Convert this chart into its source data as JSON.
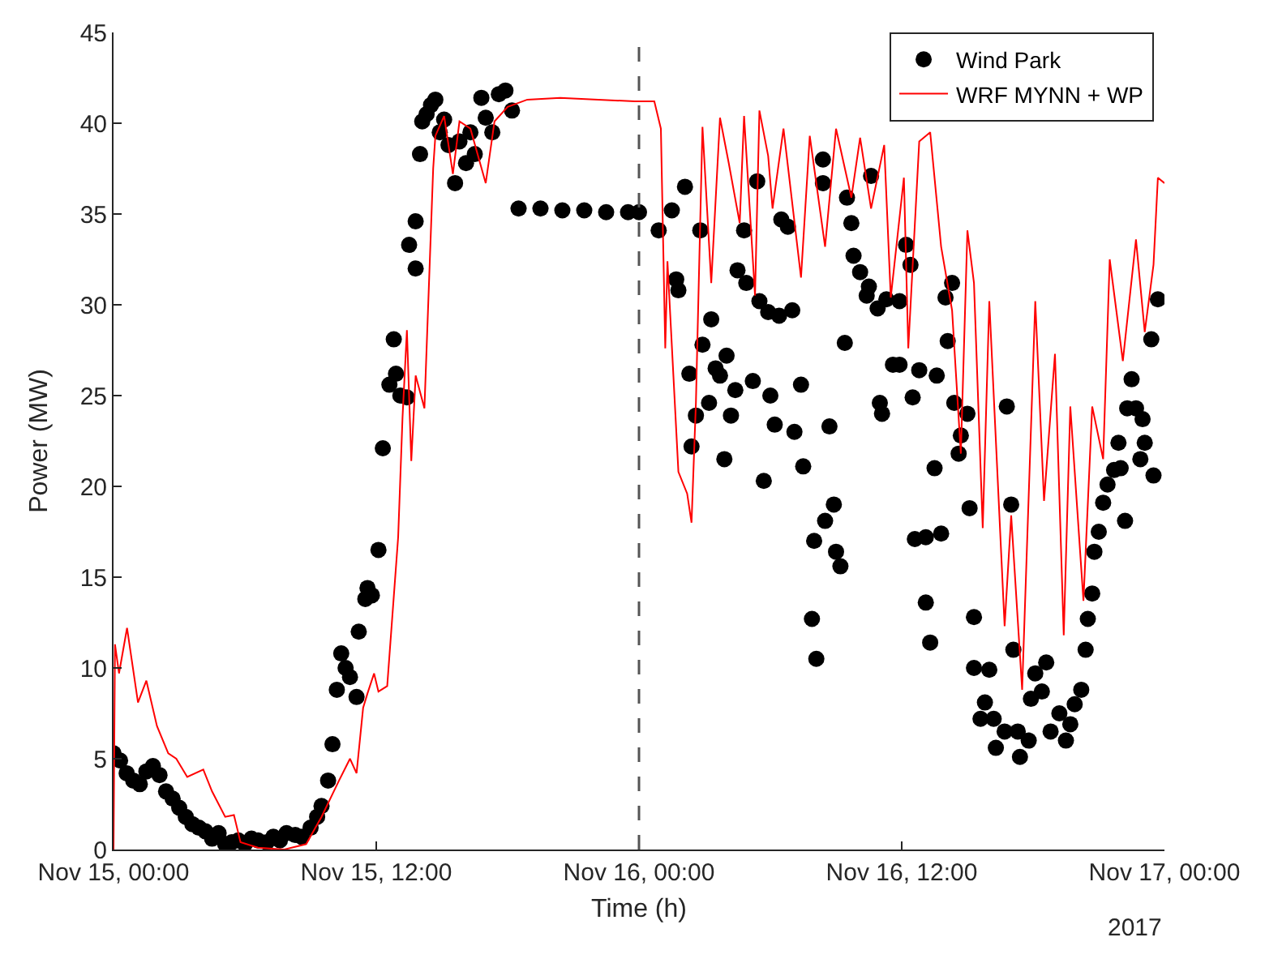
{
  "chart_data": {
    "type": "scatter",
    "xlabel": "Time (h)",
    "ylabel": "Power (MW)",
    "xlim": [
      "2017-11-15T00:00",
      "2017-11-17T00:00"
    ],
    "xticks": [
      {
        "value": "2017-11-15T00:00",
        "label": "Nov 15, 00:00"
      },
      {
        "value": "2017-11-15T12:00",
        "label": "Nov 15, 12:00"
      },
      {
        "value": "2017-11-16T00:00",
        "label": "Nov 16, 00:00"
      },
      {
        "value": "2017-11-16T12:00",
        "label": "Nov 16, 12:00"
      },
      {
        "value": "2017-11-17T00:00",
        "label": "Nov 17, 00:00"
      }
    ],
    "ylim": [
      0,
      45
    ],
    "yticks": [
      0,
      5,
      10,
      15,
      20,
      25,
      30,
      35,
      40,
      45
    ],
    "legend": "top right",
    "annotations": [
      "2017"
    ],
    "ref_lines": [
      {
        "axis": "x",
        "value": "2017-11-16T00:00",
        "color": "#555555",
        "line_style": "dashed"
      }
    ],
    "series": [
      {
        "name": "Wind Park",
        "marker": "circle",
        "color": "#000000",
        "x": [
          "2017-11-15T00:00",
          "2017-11-15T00:18",
          "2017-11-15T00:36",
          "2017-11-15T00:54",
          "2017-11-15T01:12",
          "2017-11-15T01:30",
          "2017-11-15T01:48",
          "2017-11-15T02:06",
          "2017-11-15T02:24",
          "2017-11-15T02:42",
          "2017-11-15T03:00",
          "2017-11-15T03:18",
          "2017-11-15T03:36",
          "2017-11-15T03:54",
          "2017-11-15T04:12",
          "2017-11-15T04:30",
          "2017-11-15T04:48",
          "2017-11-15T05:06",
          "2017-11-15T05:24",
          "2017-11-15T05:42",
          "2017-11-15T06:00",
          "2017-11-15T06:18",
          "2017-11-15T06:36",
          "2017-11-15T07:00",
          "2017-11-15T07:18",
          "2017-11-15T07:36",
          "2017-11-15T07:54",
          "2017-11-15T08:18",
          "2017-11-15T08:36",
          "2017-11-15T09:00",
          "2017-11-15T09:18",
          "2017-11-15T09:30",
          "2017-11-15T09:48",
          "2017-11-15T10:00",
          "2017-11-15T10:12",
          "2017-11-15T10:24",
          "2017-11-15T10:36",
          "2017-11-15T10:48",
          "2017-11-15T11:06",
          "2017-11-15T11:12",
          "2017-11-15T11:30",
          "2017-11-15T11:36",
          "2017-11-15T11:48",
          "2017-11-15T12:06",
          "2017-11-15T12:18",
          "2017-11-15T12:36",
          "2017-11-15T12:48",
          "2017-11-15T12:54",
          "2017-11-15T13:06",
          "2017-11-15T13:24",
          "2017-11-15T13:30",
          "2017-11-15T13:48",
          "2017-11-15T13:48",
          "2017-11-15T14:00",
          "2017-11-15T14:06",
          "2017-11-15T14:18",
          "2017-11-15T14:30",
          "2017-11-15T14:42",
          "2017-11-15T14:54",
          "2017-11-15T15:06",
          "2017-11-15T15:18",
          "2017-11-15T15:36",
          "2017-11-15T15:48",
          "2017-11-15T16:06",
          "2017-11-15T16:18",
          "2017-11-15T16:30",
          "2017-11-15T16:48",
          "2017-11-15T17:00",
          "2017-11-15T17:18",
          "2017-11-15T17:36",
          "2017-11-15T17:54",
          "2017-11-15T18:12",
          "2017-11-15T18:30",
          "2017-11-15T19:30",
          "2017-11-15T20:30",
          "2017-11-15T21:30",
          "2017-11-15T22:30",
          "2017-11-15T23:30",
          "2017-11-16T00:00",
          "2017-11-16T00:54",
          "2017-11-16T01:30",
          "2017-11-16T02:06",
          "2017-11-16T01:42",
          "2017-11-16T01:48",
          "2017-11-16T02:48",
          "2017-11-16T03:18",
          "2017-11-16T02:54",
          "2017-11-16T02:18",
          "2017-11-16T04:00",
          "2017-11-16T03:30",
          "2017-11-16T03:42",
          "2017-11-16T03:12",
          "2017-11-16T02:36",
          "2017-11-16T02:24",
          "2017-11-16T04:24",
          "2017-11-16T04:12",
          "2017-11-16T03:54",
          "2017-11-16T04:48",
          "2017-11-16T05:24",
          "2017-11-16T04:30",
          "2017-11-16T04:54",
          "2017-11-16T05:30",
          "2017-11-16T05:54",
          "2017-11-16T06:24",
          "2017-11-16T07:00",
          "2017-11-16T05:12",
          "2017-11-16T06:00",
          "2017-11-16T06:12",
          "2017-11-16T05:42",
          "2017-11-16T06:30",
          "2017-11-16T06:48",
          "2017-11-16T07:24",
          "2017-11-16T07:06",
          "2017-11-16T07:30",
          "2017-11-16T08:24",
          "2017-11-16T08:24",
          "2017-11-16T08:42",
          "2017-11-16T08:54",
          "2017-11-16T08:30",
          "2017-11-16T08:00",
          "2017-11-16T09:00",
          "2017-11-16T09:12",
          "2017-11-16T07:54",
          "2017-11-16T08:06",
          "2017-11-16T09:24",
          "2017-11-16T09:30",
          "2017-11-16T09:42",
          "2017-11-16T09:48",
          "2017-11-16T10:06",
          "2017-11-16T10:30",
          "2017-11-16T10:24",
          "2017-11-16T10:36",
          "2017-11-16T10:54",
          "2017-11-16T11:18",
          "2017-11-16T11:54",
          "2017-11-16T11:00",
          "2017-11-16T11:06",
          "2017-11-16T11:36",
          "2017-11-16T11:54",
          "2017-11-16T12:12",
          "2017-11-16T12:24",
          "2017-11-16T12:30",
          "2017-11-16T12:48",
          "2017-11-16T13:36",
          "2017-11-16T12:36",
          "2017-11-16T13:06",
          "2017-11-16T13:48",
          "2017-11-16T13:30",
          "2017-11-16T13:06",
          "2017-11-16T13:18",
          "2017-11-16T14:00",
          "2017-11-16T14:18",
          "2017-11-16T14:06",
          "2017-11-16T14:24",
          "2017-11-16T15:00",
          "2017-11-16T14:42",
          "2017-11-16T14:36",
          "2017-11-16T15:06",
          "2017-11-16T15:18",
          "2017-11-16T15:18",
          "2017-11-16T16:00",
          "2017-11-16T15:48",
          "2017-11-16T15:36",
          "2017-11-16T16:12",
          "2017-11-16T16:18",
          "2017-11-16T16:42",
          "2017-11-16T16:48",
          "2017-11-16T17:00",
          "2017-11-16T17:06",
          "2017-11-16T17:18",
          "2017-11-16T17:24",
          "2017-11-16T17:48",
          "2017-11-16T17:54",
          "2017-11-16T18:06",
          "2017-11-16T18:24",
          "2017-11-16T18:36",
          "2017-11-16T18:48",
          "2017-11-16T19:12",
          "2017-11-16T19:30",
          "2017-11-16T19:42",
          "2017-11-16T19:54",
          "2017-11-16T20:12",
          "2017-11-16T20:24",
          "2017-11-16T20:30",
          "2017-11-16T20:42",
          "2017-11-16T20:48",
          "2017-11-16T21:00",
          "2017-11-16T21:12",
          "2017-11-16T21:24",
          "2017-11-16T21:42",
          "2017-11-16T22:00",
          "2017-11-16T21:54",
          "2017-11-16T22:12",
          "2017-11-16T22:18",
          "2017-11-16T22:30",
          "2017-11-16T22:42",
          "2017-11-16T23:00",
          "2017-11-16T23:06",
          "2017-11-16T22:54",
          "2017-11-16T23:30",
          "2017-11-16T23:24",
          "2017-11-16T23:42"
        ],
        "values": [
          5.3,
          4.9,
          4.2,
          3.8,
          3.6,
          4.3,
          4.6,
          4.1,
          3.2,
          2.8,
          2.3,
          1.8,
          1.4,
          1.2,
          1.0,
          0.6,
          0.9,
          0.3,
          0.4,
          0.5,
          0.3,
          0.6,
          0.5,
          0.4,
          0.7,
          0.5,
          0.9,
          0.8,
          0.7,
          1.2,
          1.8,
          2.4,
          3.8,
          5.8,
          8.8,
          10.8,
          10.0,
          9.5,
          8.4,
          12.0,
          13.8,
          14.4,
          14.0,
          16.5,
          22.1,
          25.6,
          28.1,
          26.2,
          25.0,
          24.9,
          33.3,
          32.0,
          34.6,
          38.3,
          40.1,
          40.5,
          41.0,
          41.3,
          39.5,
          40.2,
          38.8,
          36.7,
          39.0,
          37.8,
          39.5,
          38.3,
          41.4,
          40.3,
          39.5,
          41.6,
          41.8,
          40.7,
          35.3,
          35.3,
          35.2,
          35.2,
          35.1,
          35.1,
          35.1,
          34.1,
          35.2,
          36.5,
          31.4,
          30.8,
          34.1,
          29.2,
          27.8,
          26.2,
          27.2,
          26.5,
          26.1,
          24.6,
          23.9,
          22.2,
          25.3,
          23.9,
          21.5,
          34.1,
          36.8,
          31.9,
          31.2,
          30.2,
          29.6,
          29.4,
          29.7,
          25.8,
          25.0,
          23.4,
          20.3,
          34.7,
          34.3,
          25.6,
          23.0,
          21.1,
          38.0,
          36.7,
          23.3,
          19.0,
          18.1,
          17.0,
          16.4,
          15.6,
          12.7,
          10.5,
          27.9,
          35.9,
          34.5,
          32.7,
          31.8,
          31.0,
          30.5,
          37.1,
          29.8,
          30.3,
          30.2,
          24.6,
          24.0,
          26.7,
          26.7,
          33.3,
          32.2,
          24.9,
          26.4,
          26.1,
          17.1,
          17.2,
          17.4,
          21.0,
          13.6,
          11.4,
          30.4,
          31.2,
          28.0,
          24.6,
          24.0,
          22.8,
          21.8,
          18.8,
          12.8,
          10.0,
          9.9,
          8.1,
          7.2,
          7.2,
          5.6,
          6.5,
          24.4,
          19.0,
          11.0,
          6.5,
          5.1,
          6.0,
          8.3,
          9.7,
          8.7,
          10.3,
          6.5,
          7.5,
          6.0,
          6.9,
          8.0,
          8.8,
          11.0,
          12.7,
          14.1,
          16.4,
          17.5,
          19.1,
          20.1,
          20.9,
          21.0,
          22.4,
          18.1,
          24.3,
          25.9,
          24.3,
          23.7,
          22.4,
          21.5,
          20.6,
          28.1,
          30.3
        ]
      },
      {
        "name": "WRF MYNN + WP",
        "type": "line",
        "line_style": "solid",
        "color": "#ff0000",
        "x": [
          "2017-11-15T00:00",
          "2017-11-15T00:04",
          "2017-11-15T00:15",
          "2017-11-15T00:37",
          "2017-11-15T01:07",
          "2017-11-15T01:30",
          "2017-11-15T01:59",
          "2017-11-15T02:30",
          "2017-11-15T02:52",
          "2017-11-15T03:22",
          "2017-11-15T04:06",
          "2017-11-15T04:30",
          "2017-11-15T05:06",
          "2017-11-15T05:30",
          "2017-11-15T05:48",
          "2017-11-15T06:36",
          "2017-11-15T07:48",
          "2017-11-15T08:48",
          "2017-11-15T09:30",
          "2017-11-15T10:18",
          "2017-11-15T10:48",
          "2017-11-15T11:06",
          "2017-11-15T11:24",
          "2017-11-15T11:36",
          "2017-11-15T11:54",
          "2017-11-15T12:06",
          "2017-11-15T12:30",
          "2017-11-15T13:00",
          "2017-11-15T13:12",
          "2017-11-15T13:24",
          "2017-11-15T13:36",
          "2017-11-15T13:48",
          "2017-11-15T14:12",
          "2017-11-15T14:36",
          "2017-11-15T14:42",
          "2017-11-15T15:06",
          "2017-11-15T15:30",
          "2017-11-15T15:48",
          "2017-11-15T16:18",
          "2017-11-15T17:00",
          "2017-11-15T17:24",
          "2017-11-15T18:00",
          "2017-11-15T18:54",
          "2017-11-15T20:24",
          "2017-11-15T23:48",
          "2017-11-16T00:42",
          "2017-11-16T01:00",
          "2017-11-16T01:12",
          "2017-11-16T01:18",
          "2017-11-16T01:48",
          "2017-11-16T02:12",
          "2017-11-16T02:24",
          "2017-11-16T02:36",
          "2017-11-16T02:54",
          "2017-11-16T03:18",
          "2017-11-16T03:42",
          "2017-11-16T04:06",
          "2017-11-16T04:36",
          "2017-11-16T04:48",
          "2017-11-16T05:18",
          "2017-11-16T05:30",
          "2017-11-16T05:54",
          "2017-11-16T06:06",
          "2017-11-16T06:36",
          "2017-11-16T07:24",
          "2017-11-16T07:48",
          "2017-11-16T08:30",
          "2017-11-16T09:00",
          "2017-11-16T09:42",
          "2017-11-16T10:06",
          "2017-11-16T10:36",
          "2017-11-16T11:12",
          "2017-11-16T11:30",
          "2017-11-16T12:06",
          "2017-11-16T12:18",
          "2017-11-16T12:48",
          "2017-11-16T13:18",
          "2017-11-16T13:48",
          "2017-11-16T14:18",
          "2017-11-16T14:42",
          "2017-11-16T15:00",
          "2017-11-16T15:18",
          "2017-11-16T15:42",
          "2017-11-16T16:00",
          "2017-11-16T16:42",
          "2017-11-16T17:00",
          "2017-11-16T17:30",
          "2017-11-16T18:06",
          "2017-11-16T18:30",
          "2017-11-16T19:00",
          "2017-11-16T19:24",
          "2017-11-16T19:42",
          "2017-11-16T20:18",
          "2017-11-16T20:42",
          "2017-11-16T21:12",
          "2017-11-16T21:30",
          "2017-11-16T22:06",
          "2017-11-16T22:42",
          "2017-11-16T23:06",
          "2017-11-16T23:30",
          "2017-11-16T23:42",
          "2017-11-17T00:00"
        ],
        "values": [
          0,
          11.3,
          9.7,
          12.2,
          8.1,
          9.3,
          6.8,
          5.3,
          5.0,
          4.0,
          4.4,
          3.2,
          1.8,
          1.9,
          0.4,
          0.1,
          0.0,
          0.3,
          1.8,
          3.8,
          5.0,
          4.2,
          7.8,
          8.6,
          9.7,
          8.7,
          9.0,
          17.2,
          23.8,
          28.6,
          21.4,
          26.1,
          24.3,
          37.5,
          39.3,
          40.4,
          37.2,
          40.1,
          39.7,
          36.7,
          40.1,
          40.9,
          41.3,
          41.4,
          41.2,
          41.2,
          39.7,
          27.6,
          32.4,
          20.8,
          19.6,
          18.0,
          24.6,
          39.8,
          31.2,
          40.3,
          37.8,
          34.5,
          40.4,
          30.5,
          40.7,
          38.2,
          35.3,
          39.7,
          31.5,
          39.3,
          33.2,
          39.7,
          35.9,
          39.2,
          35.3,
          38.8,
          30.4,
          37.0,
          27.6,
          39.0,
          39.5,
          33.2,
          29.7,
          21.8,
          34.1,
          31.2,
          17.7,
          30.2,
          12.3,
          18.4,
          8.8,
          30.2,
          19.2,
          27.3,
          11.8,
          24.4,
          13.7,
          24.4,
          21.5,
          32.5,
          26.9,
          33.6,
          28.5,
          32.2,
          37.0,
          36.7
        ]
      }
    ]
  }
}
